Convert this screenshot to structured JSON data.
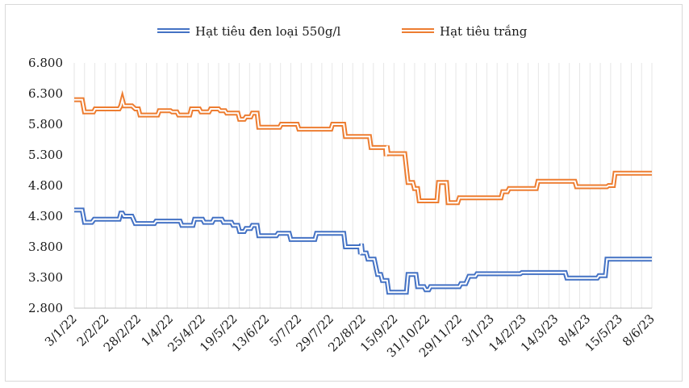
{
  "chart_data": {
    "type": "line",
    "title": "",
    "xlabel": "",
    "ylabel": "",
    "ylim": [
      2800,
      6800
    ],
    "y_ticks": [
      2800,
      3300,
      3800,
      4300,
      4800,
      5300,
      5800,
      6300,
      6800
    ],
    "y_tick_labels": [
      "2.800",
      "3.300",
      "3.800",
      "4.300",
      "4.800",
      "5.300",
      "5.800",
      "6.300",
      "6.800"
    ],
    "x_tick_labels": [
      "3/1/22",
      "2/2/22",
      "28/2/22",
      "1/4/22",
      "25/4/22",
      "19/5/22",
      "13/6/22",
      "5/7/22",
      "29/7/22",
      "22/8/22",
      "15/9/22",
      "31/10/22",
      "29/11/22",
      "3/1/23",
      "14/2/23",
      "14/3/23",
      "8/4/23",
      "15/5/23",
      "8/6/23"
    ],
    "legend_position": "top",
    "series": [
      {
        "name": "Hạt tiêu đen loại 550g/l",
        "color": "#4472c4",
        "points": [
          [
            0,
            4400
          ],
          [
            0.25,
            4400
          ],
          [
            0.32,
            4200
          ],
          [
            0.55,
            4200
          ],
          [
            0.62,
            4250
          ],
          [
            1.4,
            4250
          ],
          [
            1.45,
            4350
          ],
          [
            1.5,
            4350
          ],
          [
            1.55,
            4300
          ],
          [
            1.8,
            4300
          ],
          [
            1.9,
            4180
          ],
          [
            2.5,
            4180
          ],
          [
            2.55,
            4220
          ],
          [
            3.3,
            4220
          ],
          [
            3.35,
            4150
          ],
          [
            3.7,
            4150
          ],
          [
            3.75,
            4250
          ],
          [
            4.0,
            4250
          ],
          [
            4.05,
            4200
          ],
          [
            4.3,
            4200
          ],
          [
            4.35,
            4250
          ],
          [
            4.6,
            4250
          ],
          [
            4.65,
            4200
          ],
          [
            4.9,
            4200
          ],
          [
            4.95,
            4150
          ],
          [
            5.1,
            4150
          ],
          [
            5.15,
            4050
          ],
          [
            5.3,
            4050
          ],
          [
            5.35,
            4100
          ],
          [
            5.5,
            4100
          ],
          [
            5.55,
            4150
          ],
          [
            5.7,
            4150
          ],
          [
            5.75,
            3980
          ],
          [
            6.3,
            3980
          ],
          [
            6.35,
            4020
          ],
          [
            6.7,
            4020
          ],
          [
            6.75,
            3920
          ],
          [
            7.5,
            3920
          ],
          [
            7.55,
            4020
          ],
          [
            8.4,
            4020
          ],
          [
            8.45,
            3800
          ],
          [
            8.9,
            3800
          ],
          [
            8.92,
            3680
          ],
          [
            8.95,
            3850
          ],
          [
            8.98,
            3700
          ],
          [
            9.1,
            3700
          ],
          [
            9.15,
            3600
          ],
          [
            9.35,
            3600
          ],
          [
            9.45,
            3350
          ],
          [
            9.55,
            3350
          ],
          [
            9.6,
            3250
          ],
          [
            9.75,
            3250
          ],
          [
            9.8,
            3060
          ],
          [
            10.35,
            3060
          ],
          [
            10.4,
            3350
          ],
          [
            10.65,
            3350
          ],
          [
            10.7,
            3150
          ],
          [
            10.9,
            3150
          ],
          [
            10.95,
            3100
          ],
          [
            11.05,
            3100
          ],
          [
            11.1,
            3150
          ],
          [
            12.0,
            3150
          ],
          [
            12.05,
            3200
          ],
          [
            12.2,
            3200
          ],
          [
            12.3,
            3320
          ],
          [
            12.5,
            3320
          ],
          [
            12.55,
            3360
          ],
          [
            13.9,
            3360
          ],
          [
            13.95,
            3380
          ],
          [
            15.3,
            3380
          ],
          [
            15.35,
            3290
          ],
          [
            16.3,
            3290
          ],
          [
            16.35,
            3330
          ],
          [
            16.55,
            3330
          ],
          [
            16.6,
            3600
          ],
          [
            18.0,
            3600
          ]
        ]
      },
      {
        "name": "Hạt tiêu trắng",
        "color": "#ed7d31",
        "points": [
          [
            0,
            6200
          ],
          [
            0.25,
            6200
          ],
          [
            0.32,
            6000
          ],
          [
            0.6,
            6000
          ],
          [
            0.65,
            6050
          ],
          [
            1.4,
            6050
          ],
          [
            1.45,
            6100
          ],
          [
            1.5,
            6200
          ],
          [
            1.55,
            6100
          ],
          [
            1.8,
            6100
          ],
          [
            1.9,
            6050
          ],
          [
            2.0,
            6050
          ],
          [
            2.05,
            5950
          ],
          [
            2.6,
            5950
          ],
          [
            2.65,
            6020
          ],
          [
            3.0,
            6020
          ],
          [
            3.05,
            6000
          ],
          [
            3.2,
            6000
          ],
          [
            3.25,
            5950
          ],
          [
            3.6,
            5950
          ],
          [
            3.65,
            6050
          ],
          [
            3.9,
            6050
          ],
          [
            3.95,
            6000
          ],
          [
            4.2,
            6000
          ],
          [
            4.25,
            6050
          ],
          [
            4.5,
            6050
          ],
          [
            4.55,
            6020
          ],
          [
            4.7,
            6020
          ],
          [
            4.75,
            5980
          ],
          [
            5.1,
            5980
          ],
          [
            5.15,
            5880
          ],
          [
            5.3,
            5880
          ],
          [
            5.35,
            5920
          ],
          [
            5.5,
            5920
          ],
          [
            5.55,
            5980
          ],
          [
            5.7,
            5980
          ],
          [
            5.75,
            5750
          ],
          [
            6.4,
            5750
          ],
          [
            6.45,
            5800
          ],
          [
            6.95,
            5800
          ],
          [
            7.0,
            5720
          ],
          [
            8.0,
            5720
          ],
          [
            8.05,
            5800
          ],
          [
            8.4,
            5800
          ],
          [
            8.45,
            5600
          ],
          [
            9.2,
            5600
          ],
          [
            9.25,
            5420
          ],
          [
            9.7,
            5420
          ],
          [
            9.72,
            5280
          ],
          [
            9.75,
            5450
          ],
          [
            9.78,
            5320
          ],
          [
            10.3,
            5320
          ],
          [
            10.4,
            4850
          ],
          [
            10.55,
            4850
          ],
          [
            10.6,
            4750
          ],
          [
            10.7,
            4750
          ],
          [
            10.75,
            4550
          ],
          [
            11.3,
            4550
          ],
          [
            11.35,
            4850
          ],
          [
            11.6,
            4850
          ],
          [
            11.65,
            4520
          ],
          [
            11.95,
            4520
          ],
          [
            12.0,
            4600
          ],
          [
            13.3,
            4600
          ],
          [
            13.35,
            4700
          ],
          [
            13.5,
            4700
          ],
          [
            13.55,
            4750
          ],
          [
            14.4,
            4750
          ],
          [
            14.45,
            4870
          ],
          [
            15.6,
            4870
          ],
          [
            15.65,
            4780
          ],
          [
            16.6,
            4780
          ],
          [
            16.65,
            4800
          ],
          [
            16.8,
            4800
          ],
          [
            16.85,
            5000
          ],
          [
            18.0,
            5000
          ]
        ]
      }
    ]
  }
}
